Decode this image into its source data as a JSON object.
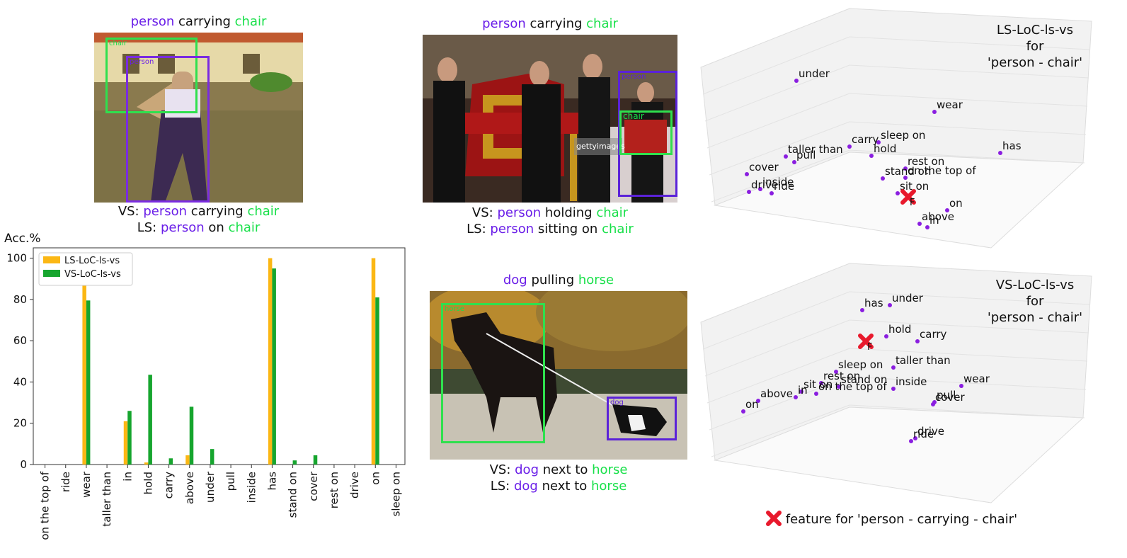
{
  "examples": [
    {
      "header": {
        "subject": "person",
        "predicate": "carrying",
        "object": "chair"
      },
      "vs": {
        "prefix": "VS:",
        "subject": "person",
        "predicate": "carrying",
        "object": "chair"
      },
      "ls": {
        "prefix": "LS:",
        "subject": "person",
        "predicate": "on",
        "object": "chair"
      },
      "box_labels": {
        "subject": "person",
        "object": "chair"
      }
    },
    {
      "header": {
        "subject": "person",
        "predicate": "carrying",
        "object": "chair"
      },
      "vs": {
        "prefix": "VS:",
        "subject": "person",
        "predicate": "holding",
        "object": "chair"
      },
      "ls": {
        "prefix": "LS:",
        "subject": "person",
        "predicate": "sitting on",
        "object": "chair"
      },
      "box_labels": {
        "subject": "person",
        "object": "chair"
      },
      "watermark": "gettyimages"
    },
    {
      "header": {
        "subject": "dog",
        "predicate": "pulling",
        "object": "horse"
      },
      "vs": {
        "prefix": "VS:",
        "subject": "dog",
        "predicate": "next to",
        "object": "horse"
      },
      "ls": {
        "prefix": "LS:",
        "subject": "dog",
        "predicate": "next to",
        "object": "horse"
      },
      "box_labels": {
        "subject": "dog",
        "object": "horse"
      }
    }
  ],
  "chart_data": {
    "type": "bar",
    "ylabel": "Acc.%",
    "ylim": [
      0,
      105
    ],
    "yticks": [
      0,
      20,
      40,
      60,
      80,
      100
    ],
    "legend_position": "top-left",
    "categories": [
      "on the top of",
      "ride",
      "wear",
      "taller than",
      "in",
      "hold",
      "carry",
      "above",
      "under",
      "pull",
      "inside",
      "has",
      "stand on",
      "cover",
      "rest on",
      "drive",
      "on",
      "sleep on"
    ],
    "series": [
      {
        "name": "LS-LoC-ls-vs",
        "color": "#fbb714",
        "values": [
          0,
          0,
          88,
          0,
          21,
          1,
          0,
          4.5,
          0,
          0,
          0,
          100,
          0,
          0,
          0,
          0,
          100,
          0
        ]
      },
      {
        "name": "VS-LoC-ls-vs",
        "color": "#16a52e",
        "values": [
          0,
          0,
          79.5,
          0,
          26,
          43.5,
          3,
          28,
          7.5,
          0,
          0,
          95,
          2,
          4.5,
          0,
          0,
          81,
          0
        ]
      }
    ]
  },
  "scatter_plots": [
    {
      "title_lines": [
        "LS-LoC-ls-vs",
        "for",
        "'person - chair'"
      ],
      "points": [
        {
          "label": "under",
          "x": 1125,
          "y": 114
        },
        {
          "label": "wear",
          "x": 1320,
          "y": 158
        },
        {
          "label": "has",
          "x": 1413,
          "y": 216
        },
        {
          "label": "carry",
          "x": 1200,
          "y": 207
        },
        {
          "label": "sleep on",
          "x": 1241,
          "y": 201
        },
        {
          "label": "hold",
          "x": 1231,
          "y": 220
        },
        {
          "label": "taller than",
          "x": 1110,
          "y": 221
        },
        {
          "label": "pull",
          "x": 1122,
          "y": 229
        },
        {
          "label": "cover",
          "x": 1055,
          "y": 246
        },
        {
          "label": "stand on",
          "x": 1247,
          "y": 252
        },
        {
          "label": "rest on",
          "x": 1279,
          "y": 238
        },
        {
          "label": "on the top of",
          "x": 1279,
          "y": 251
        },
        {
          "label": "sit on",
          "x": 1268,
          "y": 273
        },
        {
          "label": "drive",
          "x": 1058,
          "y": 271
        },
        {
          "label": "inside",
          "x": 1074,
          "y": 267
        },
        {
          "label": "ride",
          "x": 1090,
          "y": 273
        },
        {
          "label": "on",
          "x": 1338,
          "y": 297
        },
        {
          "label": "above",
          "x": 1299,
          "y": 316
        },
        {
          "label": "in",
          "x": 1310,
          "y": 321
        }
      ],
      "feature": {
        "label": "F",
        "x": 1283,
        "y": 278
      }
    },
    {
      "title_lines": [
        "VS-LoC-ls-vs",
        "for",
        "'person - chair'"
      ],
      "points": [
        {
          "label": "has",
          "x": 1218,
          "y": 438
        },
        {
          "label": "under",
          "x": 1257,
          "y": 431
        },
        {
          "label": "hold",
          "x": 1252,
          "y": 475
        },
        {
          "label": "carry",
          "x": 1296,
          "y": 482
        },
        {
          "label": "taller than",
          "x": 1262,
          "y": 519
        },
        {
          "label": "sleep on",
          "x": 1181,
          "y": 525
        },
        {
          "label": "rest on",
          "x": 1160,
          "y": 541
        },
        {
          "label": "stand on",
          "x": 1185,
          "y": 546
        },
        {
          "label": "inside",
          "x": 1262,
          "y": 549
        },
        {
          "label": "wear",
          "x": 1358,
          "y": 545
        },
        {
          "label": "sit on",
          "x": 1132,
          "y": 553
        },
        {
          "label": "in",
          "x": 1124,
          "y": 561
        },
        {
          "label": "on the top of",
          "x": 1153,
          "y": 556
        },
        {
          "label": "above",
          "x": 1071,
          "y": 566
        },
        {
          "label": "on",
          "x": 1050,
          "y": 581
        },
        {
          "label": "pull",
          "x": 1320,
          "y": 568
        },
        {
          "label": "cover",
          "x": 1318,
          "y": 571
        },
        {
          "label": "drive",
          "x": 1293,
          "y": 619
        },
        {
          "label": "ride",
          "x": 1287,
          "y": 623
        }
      ],
      "feature": {
        "label": "F",
        "x": 1223,
        "y": 482
      }
    }
  ],
  "bottom_legend": {
    "marker": "red-x",
    "text": "feature for 'person - carrying - chair'"
  }
}
